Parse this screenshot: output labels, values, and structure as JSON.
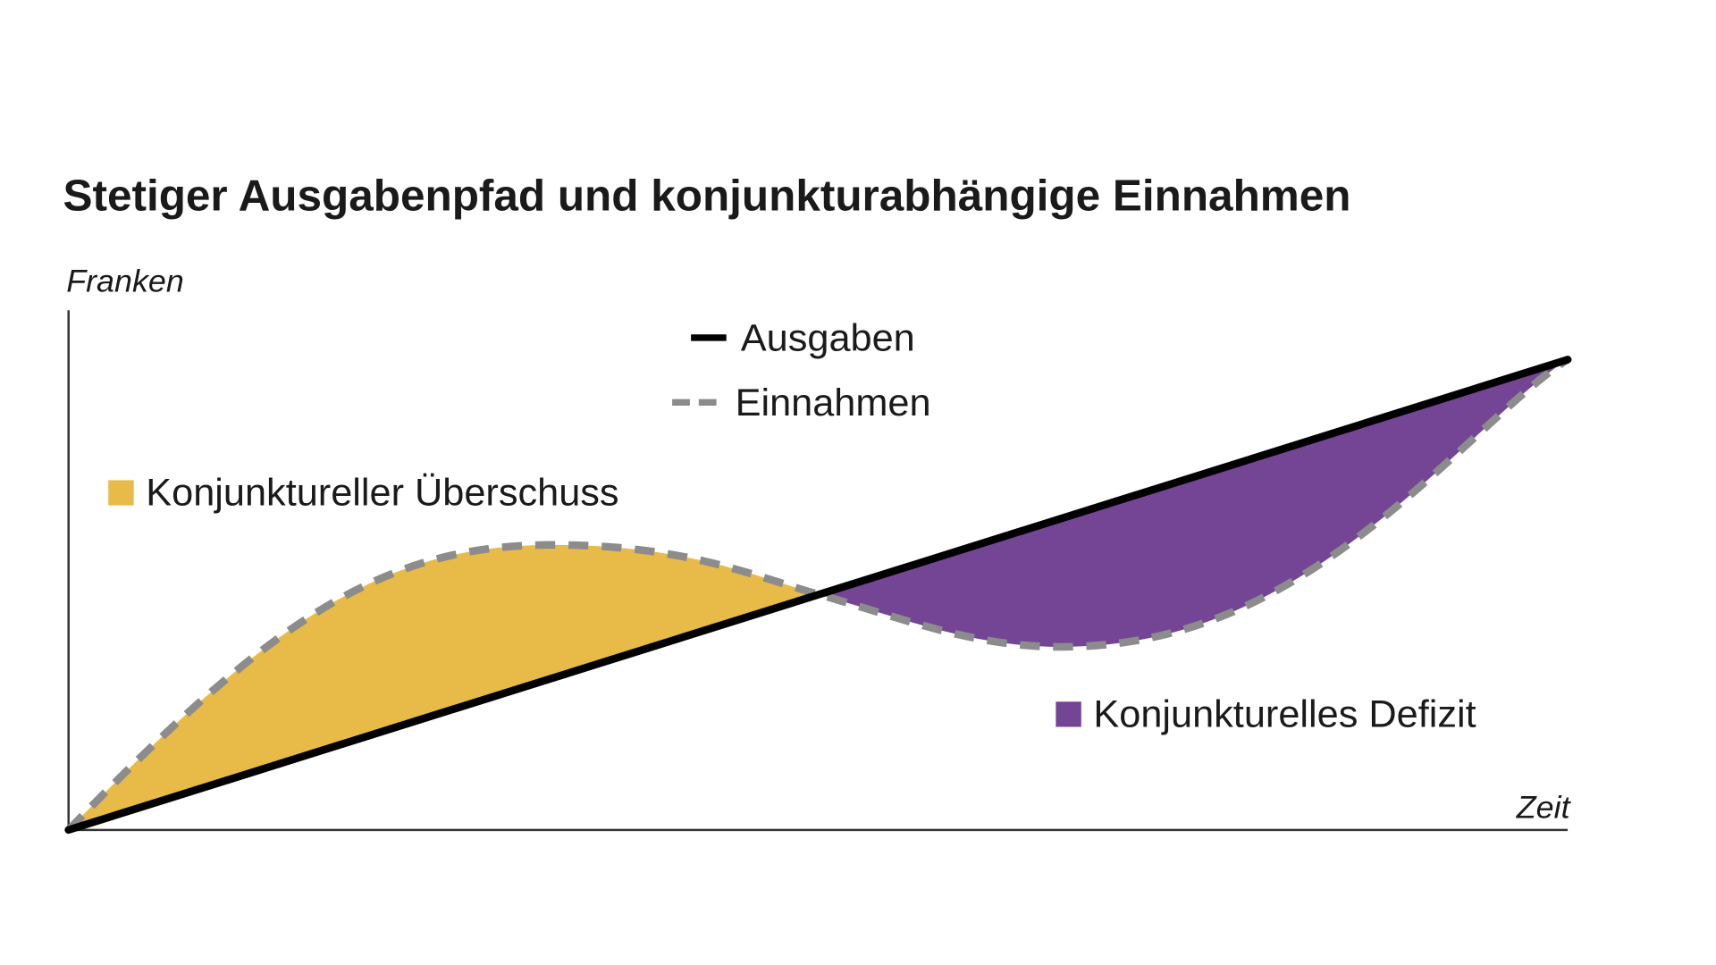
{
  "title": "Stetiger Ausgabenpfad und konjunkturabhängige Einnahmen",
  "y_axis_label": "Franken",
  "x_axis_label": "Zeit",
  "legend": [
    "Ausgaben",
    "Einnahmen"
  ],
  "regions": [
    "Konjunktureller Überschuss",
    "Konjunkturelles Defizit"
  ]
}
